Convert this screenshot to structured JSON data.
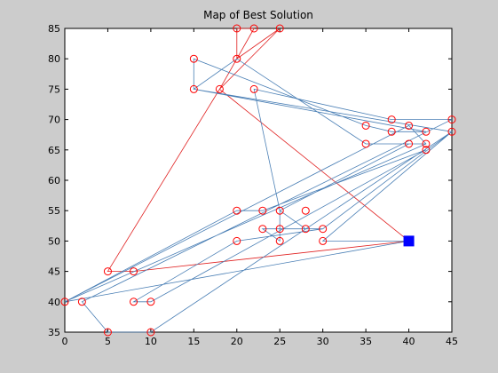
{
  "chart_data": {
    "type": "scatter",
    "title": "Map of Best Solution",
    "xlabel": "",
    "ylabel": "",
    "xlim": [
      0,
      45
    ],
    "ylim": [
      35,
      85
    ],
    "xticks": [
      0,
      5,
      10,
      15,
      20,
      25,
      30,
      35,
      40,
      45
    ],
    "yticks": [
      35,
      40,
      45,
      50,
      55,
      60,
      65,
      70,
      75,
      80,
      85
    ],
    "grid": false,
    "colors": {
      "figure_bg": "#cccccc",
      "axes_bg": "#ffffff",
      "route_blue": "#4a7fb5",
      "route_red": "#e02020",
      "marker": "#ff0000",
      "depot": "#0000ff"
    },
    "depot": {
      "x": 40,
      "y": 50
    },
    "points": [
      {
        "x": 20,
        "y": 85
      },
      {
        "x": 22,
        "y": 85
      },
      {
        "x": 25,
        "y": 85
      },
      {
        "x": 15,
        "y": 80
      },
      {
        "x": 20,
        "y": 80
      },
      {
        "x": 15,
        "y": 75
      },
      {
        "x": 18,
        "y": 75
      },
      {
        "x": 22,
        "y": 75
      },
      {
        "x": 38,
        "y": 70
      },
      {
        "x": 45,
        "y": 70
      },
      {
        "x": 35,
        "y": 69
      },
      {
        "x": 40,
        "y": 69
      },
      {
        "x": 38,
        "y": 68
      },
      {
        "x": 42,
        "y": 68
      },
      {
        "x": 45,
        "y": 68
      },
      {
        "x": 35,
        "y": 66
      },
      {
        "x": 40,
        "y": 66
      },
      {
        "x": 42,
        "y": 66
      },
      {
        "x": 42,
        "y": 65
      },
      {
        "x": 20,
        "y": 55
      },
      {
        "x": 23,
        "y": 55
      },
      {
        "x": 25,
        "y": 55
      },
      {
        "x": 28,
        "y": 55
      },
      {
        "x": 23,
        "y": 52
      },
      {
        "x": 25,
        "y": 52
      },
      {
        "x": 28,
        "y": 52
      },
      {
        "x": 30,
        "y": 52
      },
      {
        "x": 20,
        "y": 50
      },
      {
        "x": 25,
        "y": 50
      },
      {
        "x": 30,
        "y": 50
      },
      {
        "x": 5,
        "y": 45
      },
      {
        "x": 8,
        "y": 45
      },
      {
        "x": 0,
        "y": 40
      },
      {
        "x": 2,
        "y": 40
      },
      {
        "x": 8,
        "y": 40
      },
      {
        "x": 10,
        "y": 40
      },
      {
        "x": 5,
        "y": 35
      },
      {
        "x": 10,
        "y": 35
      }
    ],
    "series": [
      {
        "color": "red",
        "path": [
          [
            40,
            50
          ],
          [
            8,
            45
          ],
          [
            5,
            45
          ],
          [
            18,
            75
          ],
          [
            25,
            85
          ],
          [
            20,
            80
          ],
          [
            20,
            85
          ],
          [
            22,
            85
          ],
          [
            18,
            75
          ],
          [
            40,
            50
          ]
        ]
      },
      {
        "color": "blue",
        "path": [
          [
            40,
            50
          ],
          [
            30,
            50
          ],
          [
            45,
            68
          ],
          [
            10,
            35
          ],
          [
            5,
            35
          ],
          [
            2,
            40
          ],
          [
            45,
            70
          ],
          [
            38,
            70
          ],
          [
            22,
            75
          ],
          [
            25,
            55
          ],
          [
            28,
            52
          ],
          [
            30,
            52
          ],
          [
            23,
            52
          ],
          [
            25,
            50
          ],
          [
            25,
            55
          ],
          [
            40,
            66
          ],
          [
            42,
            66
          ],
          [
            35,
            66
          ],
          [
            20,
            80
          ],
          [
            15,
            75
          ],
          [
            42,
            68
          ],
          [
            38,
            68
          ],
          [
            35,
            69
          ],
          [
            15,
            80
          ],
          [
            15,
            75
          ],
          [
            45,
            68
          ],
          [
            30,
            52
          ],
          [
            20,
            50
          ],
          [
            8,
            40
          ],
          [
            10,
            40
          ],
          [
            42,
            65
          ],
          [
            23,
            55
          ],
          [
            20,
            55
          ],
          [
            0,
            40
          ],
          [
            42,
            66
          ],
          [
            40,
            69
          ],
          [
            0,
            40
          ],
          [
            40,
            50
          ]
        ]
      }
    ]
  }
}
